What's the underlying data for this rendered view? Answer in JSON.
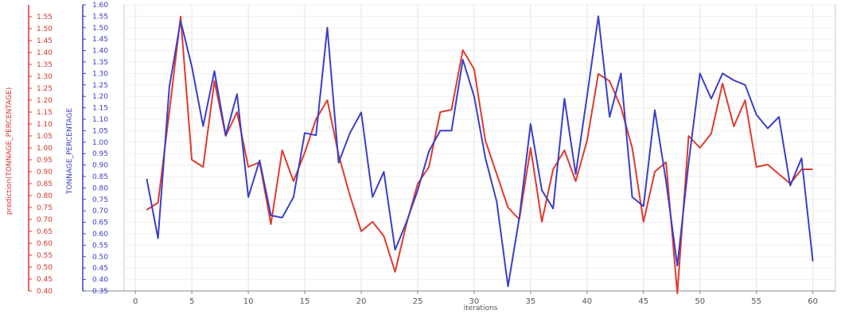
{
  "chart_data": {
    "type": "line",
    "xlabel": "iterations",
    "ylabel_left": "prediction(TONNAGE_PERCENTAGE)",
    "ylabel_right": "TONNAGE_PERCENTAGE",
    "xlim": [
      -1,
      62
    ],
    "ylim": [
      0.4,
      1.6
    ],
    "ylim_inner": [
      0.35,
      1.6
    ],
    "x_ticks": [
      0,
      5,
      10,
      15,
      20,
      25,
      30,
      35,
      40,
      45,
      50,
      55,
      60
    ],
    "y_ticks_left": [
      "0.40",
      "0.45",
      "0.50",
      "0.55",
      "0.60",
      "0.65",
      "0.70",
      "0.75",
      "0.80",
      "0.85",
      "0.90",
      "0.95",
      "1.00",
      "1.05",
      "1.10",
      "1.15",
      "1.20",
      "1.25",
      "1.30",
      "1.35",
      "1.40",
      "1.45",
      "1.50",
      "1.55"
    ],
    "y_ticks_right": [
      "0.35",
      "0.40",
      "0.45",
      "0.50",
      "0.55",
      "0.60",
      "0.65",
      "0.70",
      "0.75",
      "0.80",
      "0.85",
      "0.90",
      "0.95",
      "1.00",
      "1.05",
      "1.10",
      "1.15",
      "1.20",
      "1.25",
      "1.30",
      "1.35",
      "1.40",
      "1.45",
      "1.50",
      "1.55",
      "1.60"
    ],
    "grid": true,
    "series": [
      {
        "name": "prediction(TONNAGE_PERCENTAGE)",
        "color": "#e03a2f",
        "axis": "left",
        "x": [
          1,
          2,
          3,
          4,
          5,
          6,
          7,
          8,
          9,
          10,
          11,
          12,
          13,
          14,
          15,
          16,
          17,
          18,
          19,
          20,
          21,
          22,
          23,
          24,
          25,
          26,
          27,
          28,
          29,
          30,
          31,
          32,
          33,
          34,
          35,
          36,
          37,
          38,
          39,
          40,
          41,
          42,
          43,
          44,
          45,
          46,
          47,
          48,
          49,
          50,
          51,
          52,
          53,
          54,
          55,
          56,
          57,
          58,
          59,
          60
        ],
        "values": [
          0.74,
          0.77,
          1.15,
          1.55,
          0.95,
          0.92,
          1.28,
          1.05,
          1.15,
          0.92,
          0.94,
          0.68,
          0.99,
          0.86,
          0.98,
          1.12,
          1.2,
          0.97,
          0.8,
          0.65,
          0.69,
          0.63,
          0.48,
          0.68,
          0.85,
          0.92,
          1.15,
          1.16,
          1.41,
          1.33,
          1.03,
          0.89,
          0.75,
          0.7,
          1.0,
          0.69,
          0.91,
          0.99,
          0.86,
          1.03,
          1.31,
          1.28,
          1.17,
          1.0,
          0.69,
          0.9,
          0.94,
          0.39,
          1.05,
          1.0,
          1.06,
          1.27,
          1.09,
          1.2,
          0.92,
          0.93,
          0.89,
          0.85,
          0.91,
          0.91
        ]
      },
      {
        "name": "TONNAGE_PERCENTAGE",
        "color": "#3a3fc9",
        "axis": "right",
        "x": [
          1,
          2,
          3,
          4,
          5,
          6,
          7,
          8,
          9,
          10,
          11,
          12,
          13,
          14,
          15,
          16,
          17,
          18,
          19,
          20,
          21,
          22,
          23,
          24,
          25,
          26,
          27,
          28,
          29,
          30,
          31,
          32,
          33,
          34,
          35,
          36,
          37,
          38,
          39,
          40,
          41,
          42,
          43,
          44,
          45,
          46,
          47,
          48,
          49,
          50,
          51,
          52,
          53,
          54,
          55,
          56,
          57,
          58,
          59,
          60
        ],
        "values": [
          0.84,
          0.58,
          1.24,
          1.53,
          1.33,
          1.07,
          1.31,
          1.03,
          1.21,
          0.76,
          0.92,
          0.68,
          0.67,
          0.76,
          1.04,
          1.03,
          1.5,
          0.91,
          1.04,
          1.13,
          0.76,
          0.87,
          0.53,
          0.65,
          0.79,
          0.96,
          1.05,
          1.05,
          1.36,
          1.2,
          0.93,
          0.74,
          0.37,
          0.67,
          1.08,
          0.79,
          0.71,
          1.19,
          0.86,
          1.2,
          1.55,
          1.11,
          1.3,
          0.76,
          0.72,
          1.14,
          0.83,
          0.46,
          0.91,
          1.3,
          1.19,
          1.3,
          1.27,
          1.25,
          1.12,
          1.06,
          1.11,
          0.81,
          0.93,
          0.48
        ]
      }
    ]
  }
}
